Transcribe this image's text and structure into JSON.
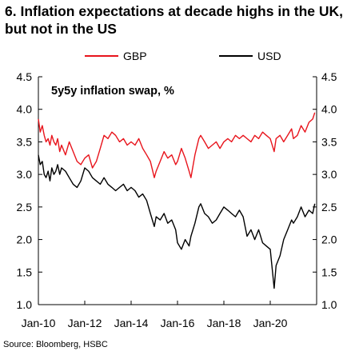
{
  "header": {
    "title": "6. Inflation expectations at decade highs in the UK, but not in the US"
  },
  "footer": {
    "source": "Source: Bloomberg, HSBC"
  },
  "chart_data": {
    "type": "line",
    "annotation": "5y5y inflation swap, %",
    "legend_position": "top",
    "grid": false,
    "xlim": [
      2010.0,
      2022.0
    ],
    "ylim": [
      1.0,
      4.5
    ],
    "y_ticks": [
      1.0,
      1.5,
      2.0,
      2.5,
      3.0,
      3.5,
      4.0,
      4.5
    ],
    "y_tick_labels": [
      "1.0",
      "1.5",
      "2.0",
      "2.5",
      "3.0",
      "3.5",
      "4.0",
      "4.5"
    ],
    "y2_tick_labels": [
      "1.0",
      "1.5",
      "2.0",
      "2.5",
      "3.0",
      "3.5",
      "4.0",
      "4.5"
    ],
    "x_ticks": [
      2010,
      2012,
      2014,
      2016,
      2018,
      2020
    ],
    "x_tick_labels": [
      "Jan-10",
      "Jan-12",
      "Jan-14",
      "Jan-16",
      "Jan-18",
      "Jan-20"
    ],
    "series": [
      {
        "name": "GBP",
        "color": "#e8141c",
        "x": [
          2010.0,
          2010.08,
          2010.17,
          2010.25,
          2010.33,
          2010.42,
          2010.5,
          2010.58,
          2010.67,
          2010.75,
          2010.83,
          2010.92,
          2011.0,
          2011.17,
          2011.33,
          2011.5,
          2011.67,
          2011.83,
          2012.0,
          2012.17,
          2012.33,
          2012.5,
          2012.67,
          2012.83,
          2013.0,
          2013.17,
          2013.33,
          2013.5,
          2013.67,
          2013.83,
          2014.0,
          2014.17,
          2014.33,
          2014.5,
          2014.67,
          2014.83,
          2015.0,
          2015.08,
          2015.25,
          2015.42,
          2015.58,
          2015.75,
          2015.92,
          2016.0,
          2016.17,
          2016.33,
          2016.5,
          2016.58,
          2016.75,
          2016.92,
          2017.0,
          2017.17,
          2017.33,
          2017.5,
          2017.67,
          2017.83,
          2018.0,
          2018.17,
          2018.33,
          2018.5,
          2018.67,
          2018.83,
          2019.0,
          2019.17,
          2019.33,
          2019.5,
          2019.67,
          2019.83,
          2020.0,
          2020.17,
          2020.25,
          2020.42,
          2020.58,
          2020.75,
          2020.92,
          2021.0,
          2021.17,
          2021.33,
          2021.5,
          2021.67,
          2021.83,
          2021.92
        ],
        "values": [
          3.85,
          3.65,
          3.75,
          3.6,
          3.5,
          3.55,
          3.45,
          3.6,
          3.5,
          3.45,
          3.55,
          3.35,
          3.45,
          3.3,
          3.5,
          3.35,
          3.2,
          3.15,
          3.25,
          3.3,
          3.1,
          3.2,
          3.4,
          3.6,
          3.55,
          3.65,
          3.6,
          3.5,
          3.55,
          3.45,
          3.5,
          3.45,
          3.55,
          3.4,
          3.3,
          3.2,
          2.95,
          3.05,
          3.2,
          3.35,
          3.25,
          3.3,
          3.15,
          3.2,
          3.4,
          3.25,
          3.05,
          2.95,
          3.3,
          3.55,
          3.6,
          3.5,
          3.4,
          3.45,
          3.5,
          3.4,
          3.5,
          3.55,
          3.5,
          3.6,
          3.55,
          3.6,
          3.55,
          3.5,
          3.6,
          3.55,
          3.65,
          3.6,
          3.55,
          3.35,
          3.55,
          3.6,
          3.5,
          3.6,
          3.7,
          3.55,
          3.6,
          3.75,
          3.65,
          3.8,
          3.85,
          3.95
        ]
      },
      {
        "name": "USD",
        "color": "#000000",
        "x": [
          2010.0,
          2010.08,
          2010.17,
          2010.25,
          2010.33,
          2010.42,
          2010.5,
          2010.58,
          2010.67,
          2010.75,
          2010.83,
          2010.92,
          2011.0,
          2011.17,
          2011.33,
          2011.5,
          2011.67,
          2011.83,
          2012.0,
          2012.17,
          2012.33,
          2012.5,
          2012.67,
          2012.83,
          2013.0,
          2013.17,
          2013.33,
          2013.5,
          2013.67,
          2013.83,
          2014.0,
          2014.17,
          2014.33,
          2014.5,
          2014.67,
          2014.83,
          2015.0,
          2015.08,
          2015.25,
          2015.42,
          2015.58,
          2015.75,
          2015.92,
          2016.0,
          2016.17,
          2016.33,
          2016.5,
          2016.58,
          2016.75,
          2016.92,
          2017.0,
          2017.17,
          2017.33,
          2017.5,
          2017.67,
          2017.83,
          2018.0,
          2018.17,
          2018.33,
          2018.5,
          2018.67,
          2018.83,
          2019.0,
          2019.17,
          2019.33,
          2019.5,
          2019.67,
          2019.83,
          2020.0,
          2020.17,
          2020.25,
          2020.42,
          2020.58,
          2020.75,
          2020.92,
          2021.0,
          2021.17,
          2021.33,
          2021.5,
          2021.67,
          2021.83,
          2021.92
        ],
        "values": [
          3.3,
          3.15,
          3.2,
          3.0,
          2.95,
          3.05,
          2.9,
          3.1,
          3.0,
          3.05,
          3.15,
          3.0,
          3.1,
          3.05,
          2.95,
          2.85,
          2.8,
          2.9,
          3.1,
          3.05,
          2.95,
          2.9,
          2.85,
          2.95,
          2.85,
          2.8,
          2.75,
          2.8,
          2.85,
          2.75,
          2.8,
          2.75,
          2.65,
          2.7,
          2.6,
          2.4,
          2.2,
          2.35,
          2.3,
          2.4,
          2.25,
          2.3,
          2.15,
          1.95,
          1.85,
          2.0,
          1.9,
          2.05,
          2.25,
          2.5,
          2.55,
          2.4,
          2.35,
          2.25,
          2.3,
          2.4,
          2.5,
          2.45,
          2.4,
          2.35,
          2.45,
          2.35,
          2.05,
          2.15,
          2.0,
          2.15,
          1.95,
          1.9,
          1.85,
          1.25,
          1.6,
          1.75,
          2.0,
          2.15,
          2.3,
          2.25,
          2.35,
          2.5,
          2.35,
          2.45,
          2.4,
          2.55
        ]
      }
    ]
  }
}
